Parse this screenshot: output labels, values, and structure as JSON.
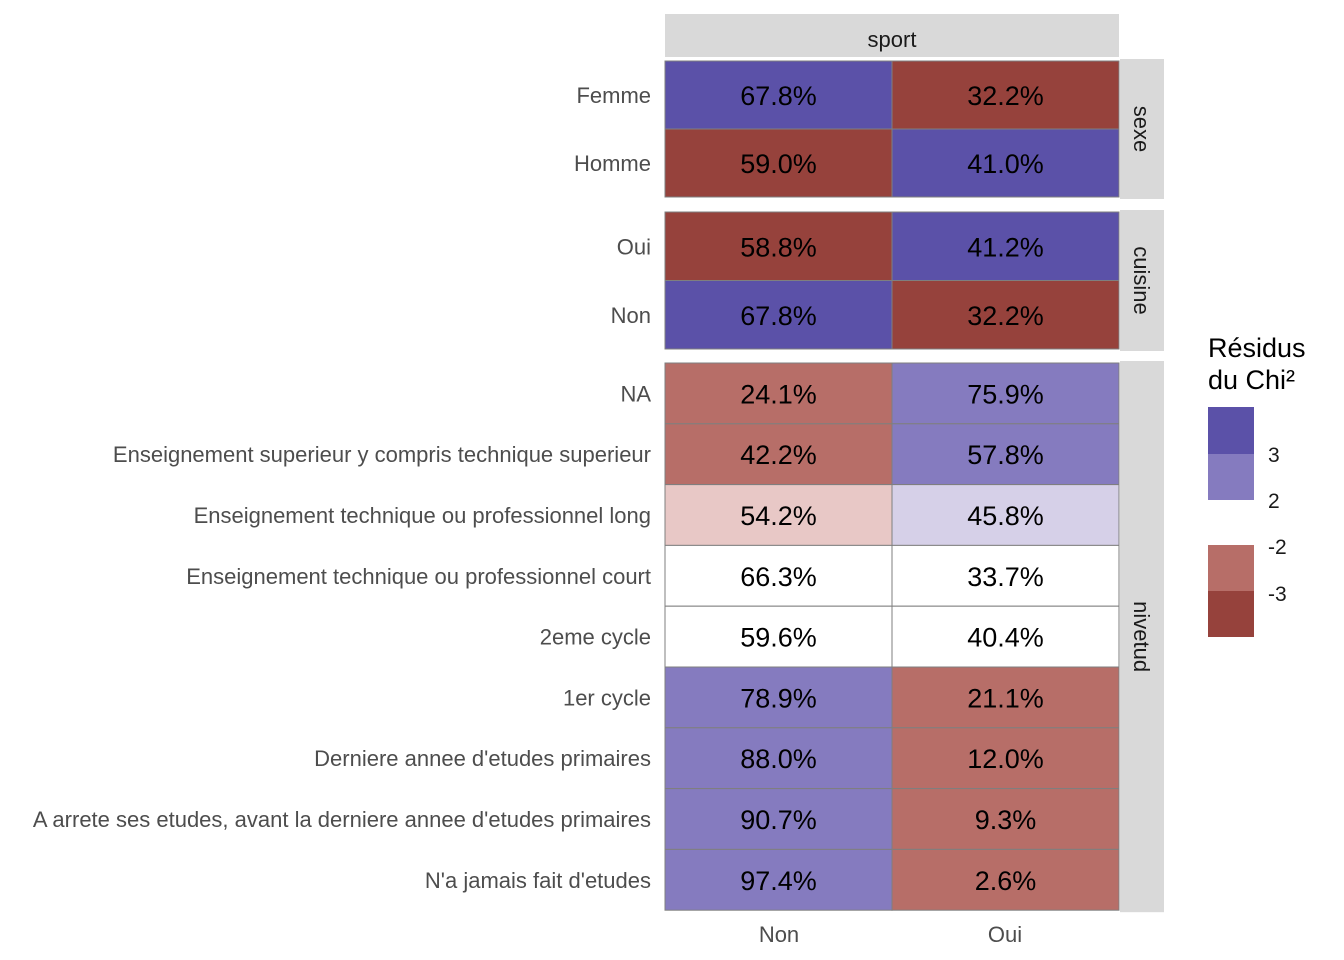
{
  "chart_data": {
    "type": "heatmap",
    "column_facet": "sport",
    "columns": [
      "Non",
      "Oui"
    ],
    "panels": [
      {
        "name": "sexe",
        "rows": [
          {
            "label": "Femme",
            "values": [
              "67.8%",
              "32.2%"
            ],
            "residual_class": [
              ">3",
              "<-3"
            ]
          },
          {
            "label": "Homme",
            "values": [
              "59.0%",
              "41.0%"
            ],
            "residual_class": [
              "<-3",
              ">3"
            ]
          }
        ]
      },
      {
        "name": "cuisine",
        "rows": [
          {
            "label": "Oui",
            "values": [
              "58.8%",
              "41.2%"
            ],
            "residual_class": [
              "<-3",
              ">3"
            ]
          },
          {
            "label": "Non",
            "values": [
              "67.8%",
              "32.2%"
            ],
            "residual_class": [
              ">3",
              "<-3"
            ]
          }
        ]
      },
      {
        "name": "nivetud",
        "rows": [
          {
            "label": "NA",
            "values": [
              "24.1%",
              "75.9%"
            ],
            "residual_class": [
              "-3..-2",
              "2..3"
            ]
          },
          {
            "label": "Enseignement superieur y compris technique superieur",
            "values": [
              "42.2%",
              "57.8%"
            ],
            "residual_class": [
              "-3..-2",
              "2..3"
            ]
          },
          {
            "label": "Enseignement technique ou professionnel long",
            "values": [
              "54.2%",
              "45.8%"
            ],
            "residual_class": [
              "-2..0",
              "0..2"
            ]
          },
          {
            "label": "Enseignement technique ou professionnel court",
            "values": [
              "66.3%",
              "33.7%"
            ],
            "residual_class": [
              "0",
              "0"
            ]
          },
          {
            "label": "2eme cycle",
            "values": [
              "59.6%",
              "40.4%"
            ],
            "residual_class": [
              "0",
              "0"
            ]
          },
          {
            "label": "1er cycle",
            "values": [
              "78.9%",
              "21.1%"
            ],
            "residual_class": [
              "2..3",
              "-3..-2"
            ]
          },
          {
            "label": "Derniere annee d'etudes primaires",
            "values": [
              "88.0%",
              "12.0%"
            ],
            "residual_class": [
              "2..3",
              "-3..-2"
            ]
          },
          {
            "label": "A arrete ses etudes, avant la derniere annee d'etudes primaires",
            "values": [
              "90.7%",
              "9.3%"
            ],
            "residual_class": [
              "2..3",
              "-3..-2"
            ]
          },
          {
            "label": "N'a jamais fait d'etudes",
            "values": [
              "97.4%",
              "2.6%"
            ],
            "residual_class": [
              "2..3",
              "-3..-2"
            ]
          }
        ]
      }
    ],
    "fill_colors": {
      ">3": "#5b51a8",
      "2..3": "#857bbf",
      "0..2": "#d6d0e8",
      "0": "#ffffff",
      "-2..0": "#e8c8c6",
      "-3..-2": "#b76e68",
      "<-3": "#96423c"
    },
    "legend": {
      "title": "Résidus\ndu Chi²",
      "title_lines": [
        "Résidus",
        "du Chi²"
      ],
      "ticks": [
        "3",
        "2",
        "-2",
        "-3"
      ],
      "positive_colors": [
        "#5b51a8",
        "#857bbf"
      ],
      "negative_colors": [
        "#b76e68",
        "#96423c"
      ]
    },
    "strip_fill": "#d9d9d9",
    "border_color": "#7f7f7f"
  }
}
